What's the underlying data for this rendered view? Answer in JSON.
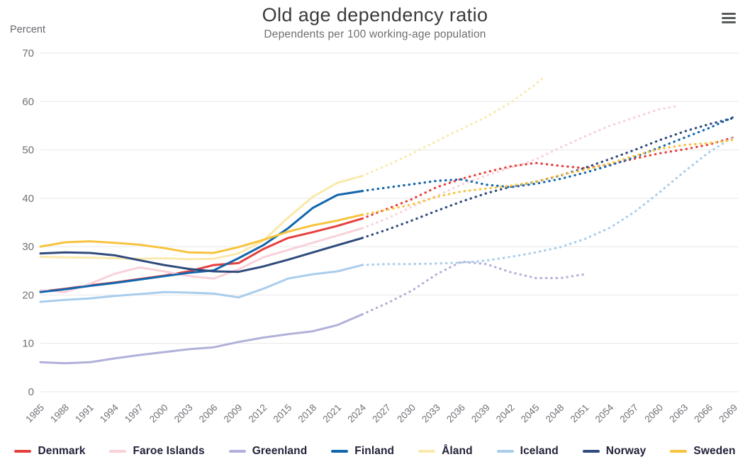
{
  "menu": {
    "icon": "hamburger-menu-icon"
  },
  "chart_data": {
    "type": "line",
    "title": "Old age dependency ratio",
    "subtitle": "Dependents per 100 working-age population",
    "ylabel": "Percent",
    "xlabel": "",
    "ylim": [
      0,
      70
    ],
    "ytick_step": 10,
    "grid": "horizontal",
    "legend_position": "bottom",
    "x_ticks": [
      1985,
      1988,
      1991,
      1994,
      1997,
      2000,
      2003,
      2006,
      2009,
      2012,
      2015,
      2018,
      2021,
      2024,
      2027,
      2030,
      2033,
      2036,
      2039,
      2042,
      2045,
      2048,
      2051,
      2054,
      2057,
      2060,
      2063,
      2066,
      2069
    ],
    "projection_start": 2024,
    "projection_style": "dotted",
    "solid_years": [
      1985,
      1988,
      1991,
      1994,
      1997,
      2000,
      2003,
      2006,
      2009,
      2012,
      2015,
      2018,
      2021,
      2024
    ],
    "series": [
      {
        "name": "Denmark",
        "color": "#e5403d",
        "solid": {
          "x": [
            1985,
            1988,
            1991,
            1994,
            1997,
            2000,
            2003,
            2006,
            2009,
            2012,
            2015,
            2018,
            2021,
            2024
          ],
          "y": [
            20.7,
            21.3,
            22.0,
            22.6,
            23.3,
            24.0,
            24.9,
            26.2,
            26.6,
            29.5,
            31.8,
            33.0,
            34.3,
            35.8
          ]
        },
        "projected": {
          "x": [
            2024,
            2027,
            2030,
            2033,
            2036,
            2039,
            2042,
            2045,
            2048,
            2051,
            2054,
            2057,
            2060,
            2063,
            2066,
            2069
          ],
          "y": [
            35.8,
            37.8,
            39.8,
            42.3,
            44.0,
            45.4,
            46.6,
            47.3,
            46.7,
            46.2,
            47.0,
            48.2,
            49.3,
            50.1,
            51.1,
            52.6
          ]
        }
      },
      {
        "name": "Faroe Islands",
        "color": "#f9d1d9",
        "solid": {
          "x": [
            1985,
            1988,
            1991,
            1994,
            1997,
            2000,
            2003,
            2006,
            2009,
            2012,
            2015,
            2018,
            2021,
            2024
          ],
          "y": [
            21.0,
            20.6,
            22.3,
            24.4,
            25.7,
            24.9,
            23.9,
            23.4,
            25.3,
            27.8,
            29.3,
            30.8,
            32.3,
            33.8
          ]
        },
        "projected": {
          "x": [
            2024,
            2027,
            2030,
            2033,
            2036,
            2039,
            2042,
            2045,
            2048,
            2051,
            2054,
            2057,
            2060,
            2062
          ],
          "y": [
            33.8,
            35.8,
            38.2,
            40.5,
            42.8,
            44.7,
            46.3,
            48.0,
            50.5,
            52.8,
            55.0,
            56.7,
            58.4,
            59.0
          ]
        }
      },
      {
        "name": "Greenland",
        "color": "#b1b0da",
        "solid": {
          "x": [
            1985,
            1988,
            1991,
            1994,
            1997,
            2000,
            2003,
            2006,
            2009,
            2012,
            2015,
            2018,
            2021,
            2024
          ],
          "y": [
            6.1,
            5.9,
            6.1,
            6.9,
            7.6,
            8.2,
            8.8,
            9.2,
            10.3,
            11.2,
            11.9,
            12.5,
            13.8,
            16.0
          ]
        },
        "projected": {
          "x": [
            2024,
            2027,
            2030,
            2033,
            2036,
            2039,
            2042,
            2045,
            2048,
            2051
          ],
          "y": [
            16.0,
            18.3,
            20.9,
            24.3,
            26.9,
            26.4,
            24.7,
            23.5,
            23.5,
            24.3
          ]
        }
      },
      {
        "name": "Finland",
        "color": "#1266ad",
        "solid": {
          "x": [
            1985,
            1988,
            1991,
            1994,
            1997,
            2000,
            2003,
            2006,
            2009,
            2012,
            2015,
            2018,
            2021,
            2024
          ],
          "y": [
            20.6,
            21.2,
            21.9,
            22.5,
            23.2,
            23.9,
            24.6,
            25.1,
            27.6,
            30.3,
            33.8,
            38.0,
            40.7,
            41.5
          ]
        },
        "projected": {
          "x": [
            2024,
            2027,
            2030,
            2033,
            2036,
            2039,
            2042,
            2045,
            2048,
            2051,
            2054,
            2057,
            2060,
            2063,
            2066,
            2069
          ],
          "y": [
            41.5,
            42.2,
            42.9,
            43.6,
            43.9,
            42.8,
            42.3,
            43.0,
            44.0,
            45.3,
            46.8,
            48.5,
            50.5,
            52.5,
            54.5,
            56.8
          ]
        }
      },
      {
        "name": "Åland",
        "color": "#fae9ac",
        "solid": {
          "x": [
            1985,
            1988,
            1991,
            1994,
            1997,
            2000,
            2003,
            2006,
            2009,
            2012,
            2015,
            2018,
            2021,
            2024
          ],
          "y": [
            27.9,
            27.8,
            27.7,
            27.6,
            27.5,
            27.6,
            27.4,
            27.5,
            28.6,
            31.2,
            36.0,
            40.3,
            43.2,
            44.6
          ]
        },
        "projected": {
          "x": [
            2024,
            2027,
            2030,
            2033,
            2036,
            2039,
            2042,
            2045,
            2046
          ],
          "y": [
            44.6,
            46.8,
            49.2,
            51.8,
            54.3,
            56.8,
            59.8,
            63.6,
            65.0
          ]
        }
      },
      {
        "name": "Iceland",
        "color": "#a9cdec",
        "solid": {
          "x": [
            1985,
            1988,
            1991,
            1994,
            1997,
            2000,
            2003,
            2006,
            2009,
            2012,
            2015,
            2018,
            2021,
            2024
          ],
          "y": [
            18.6,
            19.0,
            19.3,
            19.8,
            20.2,
            20.6,
            20.5,
            20.3,
            19.5,
            21.3,
            23.4,
            24.3,
            24.9,
            26.2
          ]
        },
        "projected": {
          "x": [
            2024,
            2027,
            2030,
            2033,
            2036,
            2039,
            2042,
            2045,
            2048,
            2051,
            2054,
            2057,
            2060,
            2063,
            2066,
            2069
          ],
          "y": [
            26.2,
            26.4,
            26.4,
            26.5,
            26.7,
            27.1,
            27.9,
            28.8,
            29.9,
            31.6,
            33.9,
            37.2,
            41.2,
            45.5,
            49.5,
            52.7
          ]
        }
      },
      {
        "name": "Norway",
        "color": "#2f4b7c",
        "solid": {
          "x": [
            1985,
            1988,
            1991,
            1994,
            1997,
            2000,
            2003,
            2006,
            2009,
            2012,
            2015,
            2018,
            2021,
            2024
          ],
          "y": [
            28.6,
            28.8,
            28.7,
            28.2,
            27.2,
            26.2,
            25.4,
            24.9,
            24.8,
            25.9,
            27.3,
            28.8,
            30.3,
            31.8
          ]
        },
        "projected": {
          "x": [
            2024,
            2027,
            2030,
            2033,
            2036,
            2039,
            2042,
            2045,
            2048,
            2051,
            2054,
            2057,
            2060,
            2063,
            2066,
            2069
          ],
          "y": [
            31.8,
            33.5,
            35.4,
            37.4,
            39.3,
            41.0,
            42.4,
            43.4,
            44.7,
            46.3,
            48.1,
            50.0,
            52.0,
            53.8,
            55.3,
            56.6
          ]
        }
      },
      {
        "name": "Sweden",
        "color": "#f8c33d",
        "solid": {
          "x": [
            1985,
            1988,
            1991,
            1994,
            1997,
            2000,
            2003,
            2006,
            2009,
            2012,
            2015,
            2018,
            2021,
            2024
          ],
          "y": [
            30.0,
            30.9,
            31.1,
            30.8,
            30.4,
            29.7,
            28.8,
            28.7,
            29.9,
            31.4,
            33.1,
            34.4,
            35.4,
            36.6
          ]
        },
        "projected": {
          "x": [
            2024,
            2027,
            2030,
            2033,
            2036,
            2039,
            2042,
            2045,
            2048,
            2051,
            2054,
            2057,
            2060,
            2063,
            2066,
            2069
          ],
          "y": [
            36.6,
            37.6,
            38.7,
            40.3,
            41.4,
            42.0,
            42.6,
            43.4,
            44.8,
            45.9,
            47.2,
            48.8,
            50.2,
            51.0,
            51.4,
            52.1
          ]
        }
      }
    ]
  },
  "colors": {
    "grid": "#e7e7e7",
    "axis_text": "#6f7076",
    "title_text": "#3b3b3b",
    "subtitle_text": "#6e6e6e",
    "legend_text": "#22223a",
    "menu_icon": "#58595b",
    "background": "#ffffff"
  }
}
